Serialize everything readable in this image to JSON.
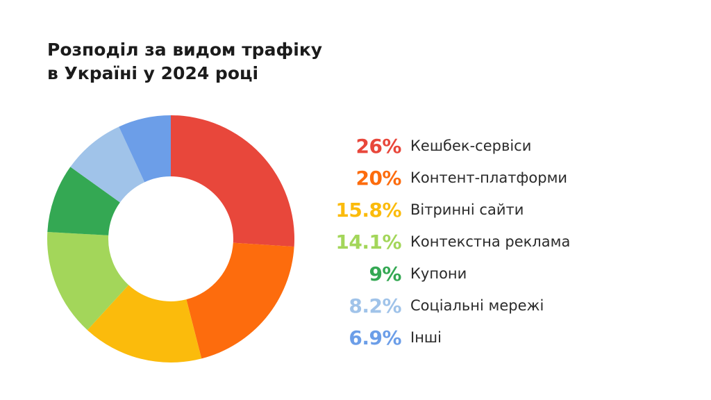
{
  "title_lines": [
    "Розподіл за видом трафіку",
    "в Україні у 2024 році"
  ],
  "chart_data": {
    "type": "pie",
    "title": "Розподіл за видом трафіку в Україні у 2024 році",
    "donut": true,
    "legend_position": "right",
    "categories": [
      "Кешбек-сервіси",
      "Контент-платформи",
      "Вітринні сайти",
      "Контекстна реклама",
      "Купони",
      "Соціальні мережі",
      "Інші"
    ],
    "values": [
      26,
      20,
      15.8,
      14.1,
      9,
      8.2,
      6.9
    ],
    "value_labels": [
      "26%",
      "20%",
      "15.8%",
      "14.1%",
      "9%",
      "8.2%",
      "6.9%"
    ],
    "colors": [
      "#e8473b",
      "#fd6c0d",
      "#fbbb0c",
      "#a3d65a",
      "#34a853",
      "#a0c3e9",
      "#6c9ee8"
    ]
  }
}
